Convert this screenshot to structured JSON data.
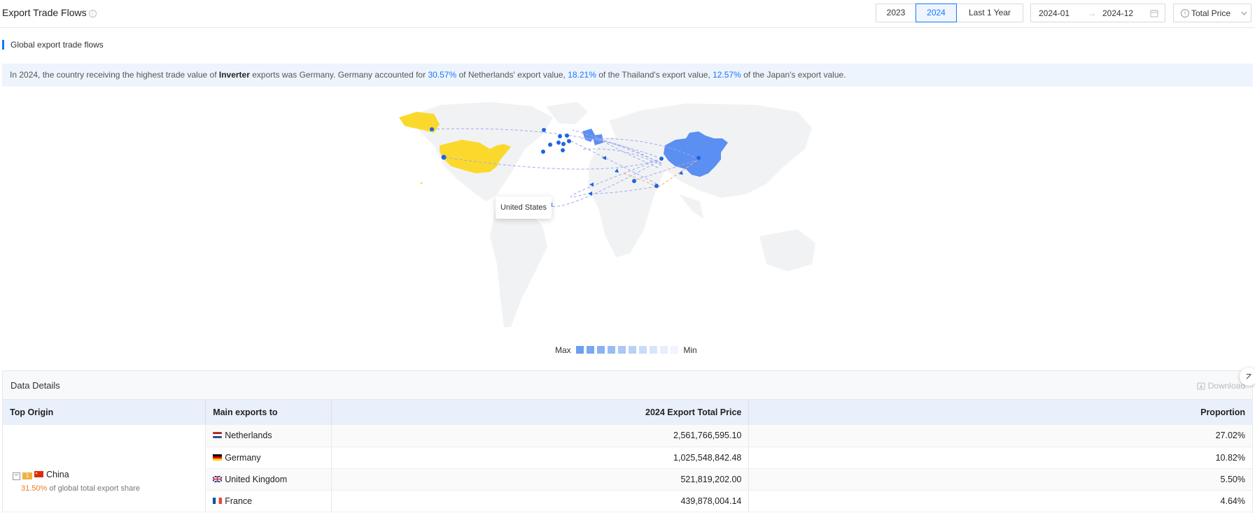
{
  "header": {
    "title": "Export Trade Flows",
    "years": [
      "2023",
      "2024",
      "Last 1 Year"
    ],
    "active_year": "2024",
    "date_start": "2024-01",
    "date_sep": "→",
    "date_end": "2024-12",
    "metric": "Total Price"
  },
  "section_label": "Global export trade flows",
  "summary": {
    "p1": "In 2024, the country receiving the highest trade value of ",
    "product": "Inverter",
    "p2": " exports was Germany. Germany accounted for ",
    "v1": "30.57%",
    "p3": " of Netherlands' export value, ",
    "v2": "18.21%",
    "p4": " of the Thailand's export value, ",
    "v3": "12.57%",
    "p5": " of the Japan's export value."
  },
  "map": {
    "tooltip": "United States",
    "legend_max": "Max",
    "legend_min": "Min",
    "legend_colors": [
      "#6a9ef0",
      "#7aa8f1",
      "#8ab2f2",
      "#9abdf4",
      "#aac7f5",
      "#bad1f7",
      "#c9dbf8",
      "#d9e6fa",
      "#e6effc",
      "#f0f5fd"
    ],
    "china_color": "#5b8ff2",
    "us_color": "#fbd92c"
  },
  "details": {
    "title": "Data Details",
    "download": "Download",
    "columns": [
      "Top Origin",
      "Main exports to",
      "2024 Export Total Price",
      "Proportion"
    ],
    "origin": {
      "toggle": "−",
      "name": "China",
      "share_value": "31.50%",
      "share_text": " of global total export share"
    },
    "rows": [
      {
        "country": "Netherlands",
        "value": "2,561,766,595.10",
        "proportion": "27.02%"
      },
      {
        "country": "Germany",
        "value": "1,025,548,842.48",
        "proportion": "10.82%"
      },
      {
        "country": "United Kingdom",
        "value": "521,819,202.00",
        "proportion": "5.50%"
      },
      {
        "country": "France",
        "value": "439,878,004.14",
        "proportion": "4.64%"
      }
    ]
  }
}
